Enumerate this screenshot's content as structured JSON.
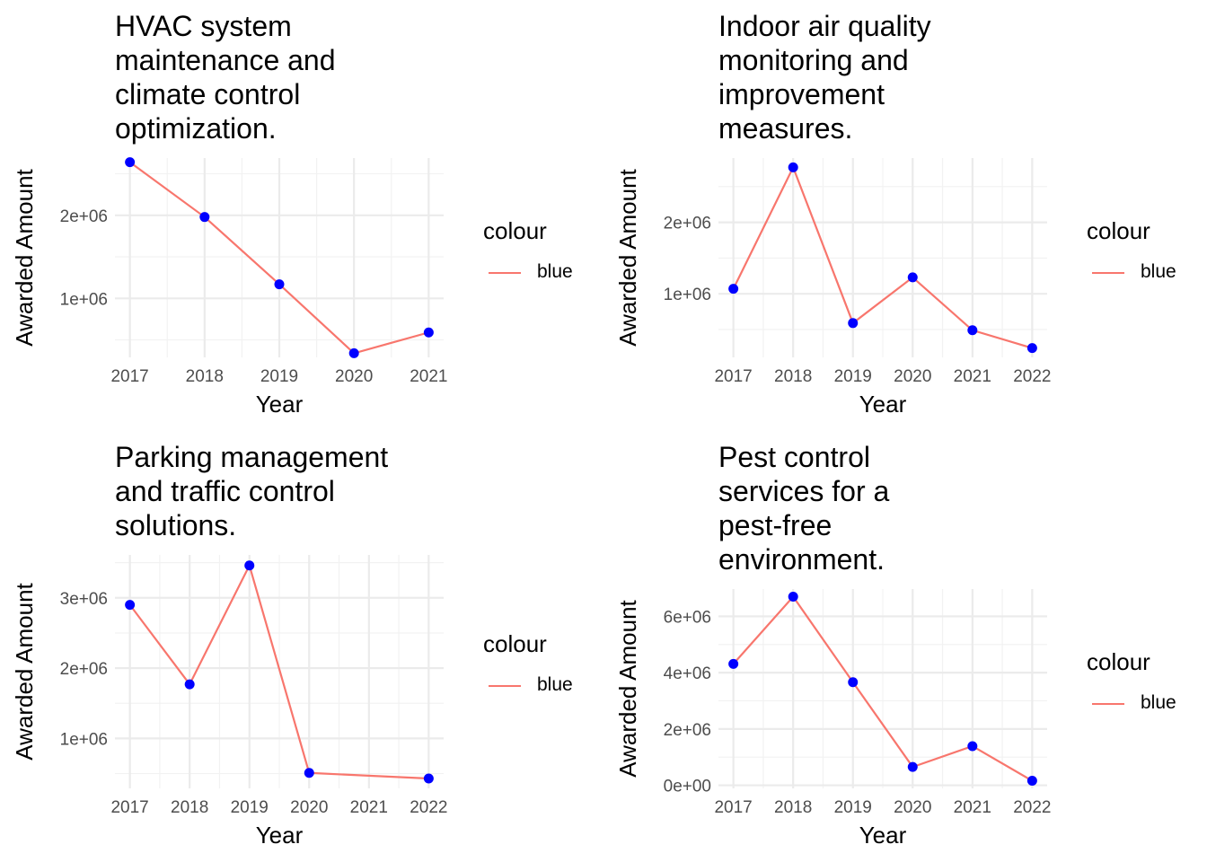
{
  "colors": {
    "line": "#F8766D",
    "point": "#0000FF",
    "grid_major": "#EBEBEB",
    "grid_minor": "#F2F2F2",
    "tick_text": "#4D4D4D"
  },
  "chart_data": [
    {
      "type": "line",
      "title_lines": [
        "HVAC system",
        "maintenance and",
        "climate control",
        "optimization."
      ],
      "xlabel": "Year",
      "ylabel": "Awarded Amount",
      "x": [
        2017,
        2018,
        2019,
        2020,
        2021
      ],
      "y": [
        2640000,
        1980000,
        1170000,
        340000,
        590000
      ],
      "xlim": [
        2016.8,
        2021.2
      ],
      "ylim": [
        290000,
        2690000
      ],
      "yticks": [
        1000000,
        2000000
      ],
      "ytick_labels": [
        "1e+06",
        "2e+06"
      ],
      "xtick_labels": [
        "2017",
        "2018",
        "2019",
        "2020",
        "2021"
      ],
      "legend": {
        "title": "colour",
        "entries": [
          "blue"
        ]
      }
    },
    {
      "type": "line",
      "title_lines": [
        "Indoor air quality",
        "monitoring and",
        "improvement",
        "measures."
      ],
      "xlabel": "Year",
      "ylabel": "Awarded Amount",
      "x": [
        2017,
        2018,
        2019,
        2020,
        2021,
        2022
      ],
      "y": [
        1070000,
        2770000,
        590000,
        1230000,
        490000,
        240000
      ],
      "xlim": [
        2016.75,
        2022.25
      ],
      "ylim": [
        110000,
        2900000
      ],
      "yticks": [
        1000000,
        2000000
      ],
      "ytick_labels": [
        "1e+06",
        "2e+06"
      ],
      "xtick_labels": [
        "2017",
        "2018",
        "2019",
        "2020",
        "2021",
        "2022"
      ],
      "legend": {
        "title": "colour",
        "entries": [
          "blue"
        ]
      }
    },
    {
      "type": "line",
      "title_lines": [
        "Parking management",
        "and traffic control",
        "solutions."
      ],
      "xlabel": "Year",
      "ylabel": "Awarded Amount",
      "x": [
        2017,
        2018,
        2019,
        2020,
        2021,
        2022
      ],
      "y": [
        2900000,
        1770000,
        3460000,
        510000,
        null,
        430000
      ],
      "xlim": [
        2016.75,
        2022.25
      ],
      "ylim": [
        290000,
        3610000
      ],
      "yticks": [
        1000000,
        2000000,
        3000000
      ],
      "ytick_labels": [
        "1e+06",
        "2e+06",
        "3e+06"
      ],
      "xtick_labels": [
        "2017",
        "2018",
        "2019",
        "2020",
        "2021",
        "2022"
      ],
      "legend": {
        "title": "colour",
        "entries": [
          "blue"
        ]
      }
    },
    {
      "type": "line",
      "title_lines": [
        "Pest control",
        "services for a",
        "pest-free",
        "environment."
      ],
      "xlabel": "Year",
      "ylabel": "Awarded Amount",
      "x": [
        2017,
        2018,
        2019,
        2020,
        2021,
        2022
      ],
      "y": [
        4310000,
        6700000,
        3660000,
        650000,
        1390000,
        160000
      ],
      "xlim": [
        2016.75,
        2022.25
      ],
      "ylim": [
        -110000,
        6970000
      ],
      "yticks": [
        0,
        2000000,
        4000000,
        6000000
      ],
      "ytick_labels": [
        "0e+00",
        "2e+06",
        "4e+06",
        "6e+06"
      ],
      "xtick_labels": [
        "2017",
        "2018",
        "2019",
        "2020",
        "2021",
        "2022"
      ],
      "legend": {
        "title": "colour",
        "entries": [
          "blue"
        ]
      }
    }
  ]
}
